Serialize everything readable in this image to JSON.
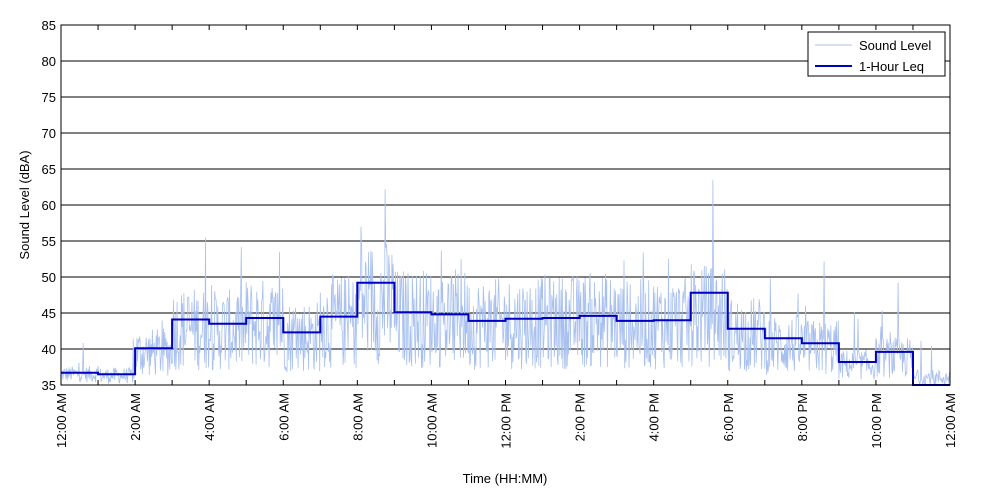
{
  "chart_data": {
    "type": "line",
    "title": "",
    "xlabel": "Time (HH:MM)",
    "ylabel": "Sound Level (dBA)",
    "ylim": [
      35,
      85
    ],
    "yticks": [
      35,
      40,
      45,
      50,
      55,
      60,
      65,
      70,
      75,
      80,
      85
    ],
    "xlim": [
      0,
      24
    ],
    "xtick_hours": [
      0,
      2,
      4,
      6,
      8,
      10,
      12,
      14,
      16,
      18,
      20,
      22,
      24
    ],
    "xtick_labels": [
      "12:00 AM",
      "2:00 AM",
      "4:00 AM",
      "6:00 AM",
      "8:00 AM",
      "10:00 AM",
      "12:00 PM",
      "2:00 PM",
      "4:00 PM",
      "6:00 PM",
      "8:00 PM",
      "10:00 PM",
      "12:00 AM"
    ],
    "grid": "horizontal",
    "legend_position": "top-right",
    "series": [
      {
        "name": "Sound Level",
        "color": "#a8c0f0",
        "style": "thin noisy line",
        "hourly_mean_estimate": [
          36.5,
          36.3,
          39.5,
          42.8,
          42.6,
          43.5,
          41.8,
          43.8,
          46.5,
          44.3,
          44.2,
          43.5,
          43.6,
          43.8,
          44.0,
          43.4,
          43.6,
          44.6,
          42.0,
          40.6,
          40.2,
          37.8,
          38.8,
          36.0
        ],
        "peaks": [
          {
            "hour": 3.9,
            "value": 55.5
          },
          {
            "hour": 5.9,
            "value": 53.5
          },
          {
            "hour": 8.1,
            "value": 57.0
          },
          {
            "hour": 8.75,
            "value": 62.2
          },
          {
            "hour": 10.8,
            "value": 52.5
          },
          {
            "hour": 15.2,
            "value": 52.3
          },
          {
            "hour": 16.4,
            "value": 52.5
          },
          {
            "hour": 17.6,
            "value": 63.5
          },
          {
            "hour": 20.6,
            "value": 52.2
          },
          {
            "hour": 22.6,
            "value": 49.2
          }
        ]
      },
      {
        "name": "1-Hour Leq",
        "color": "#0000c0",
        "style": "step",
        "hours": [
          0,
          1,
          2,
          3,
          4,
          5,
          6,
          7,
          8,
          9,
          10,
          11,
          12,
          13,
          14,
          15,
          16,
          17,
          18,
          19,
          20,
          21,
          22,
          23
        ],
        "values": [
          36.7,
          36.5,
          40.1,
          44.1,
          43.5,
          44.3,
          42.3,
          44.5,
          49.2,
          45.1,
          44.8,
          43.9,
          44.2,
          44.3,
          44.6,
          43.9,
          44.0,
          47.8,
          42.8,
          41.5,
          40.8,
          38.2,
          39.6,
          34.5
        ]
      }
    ]
  }
}
